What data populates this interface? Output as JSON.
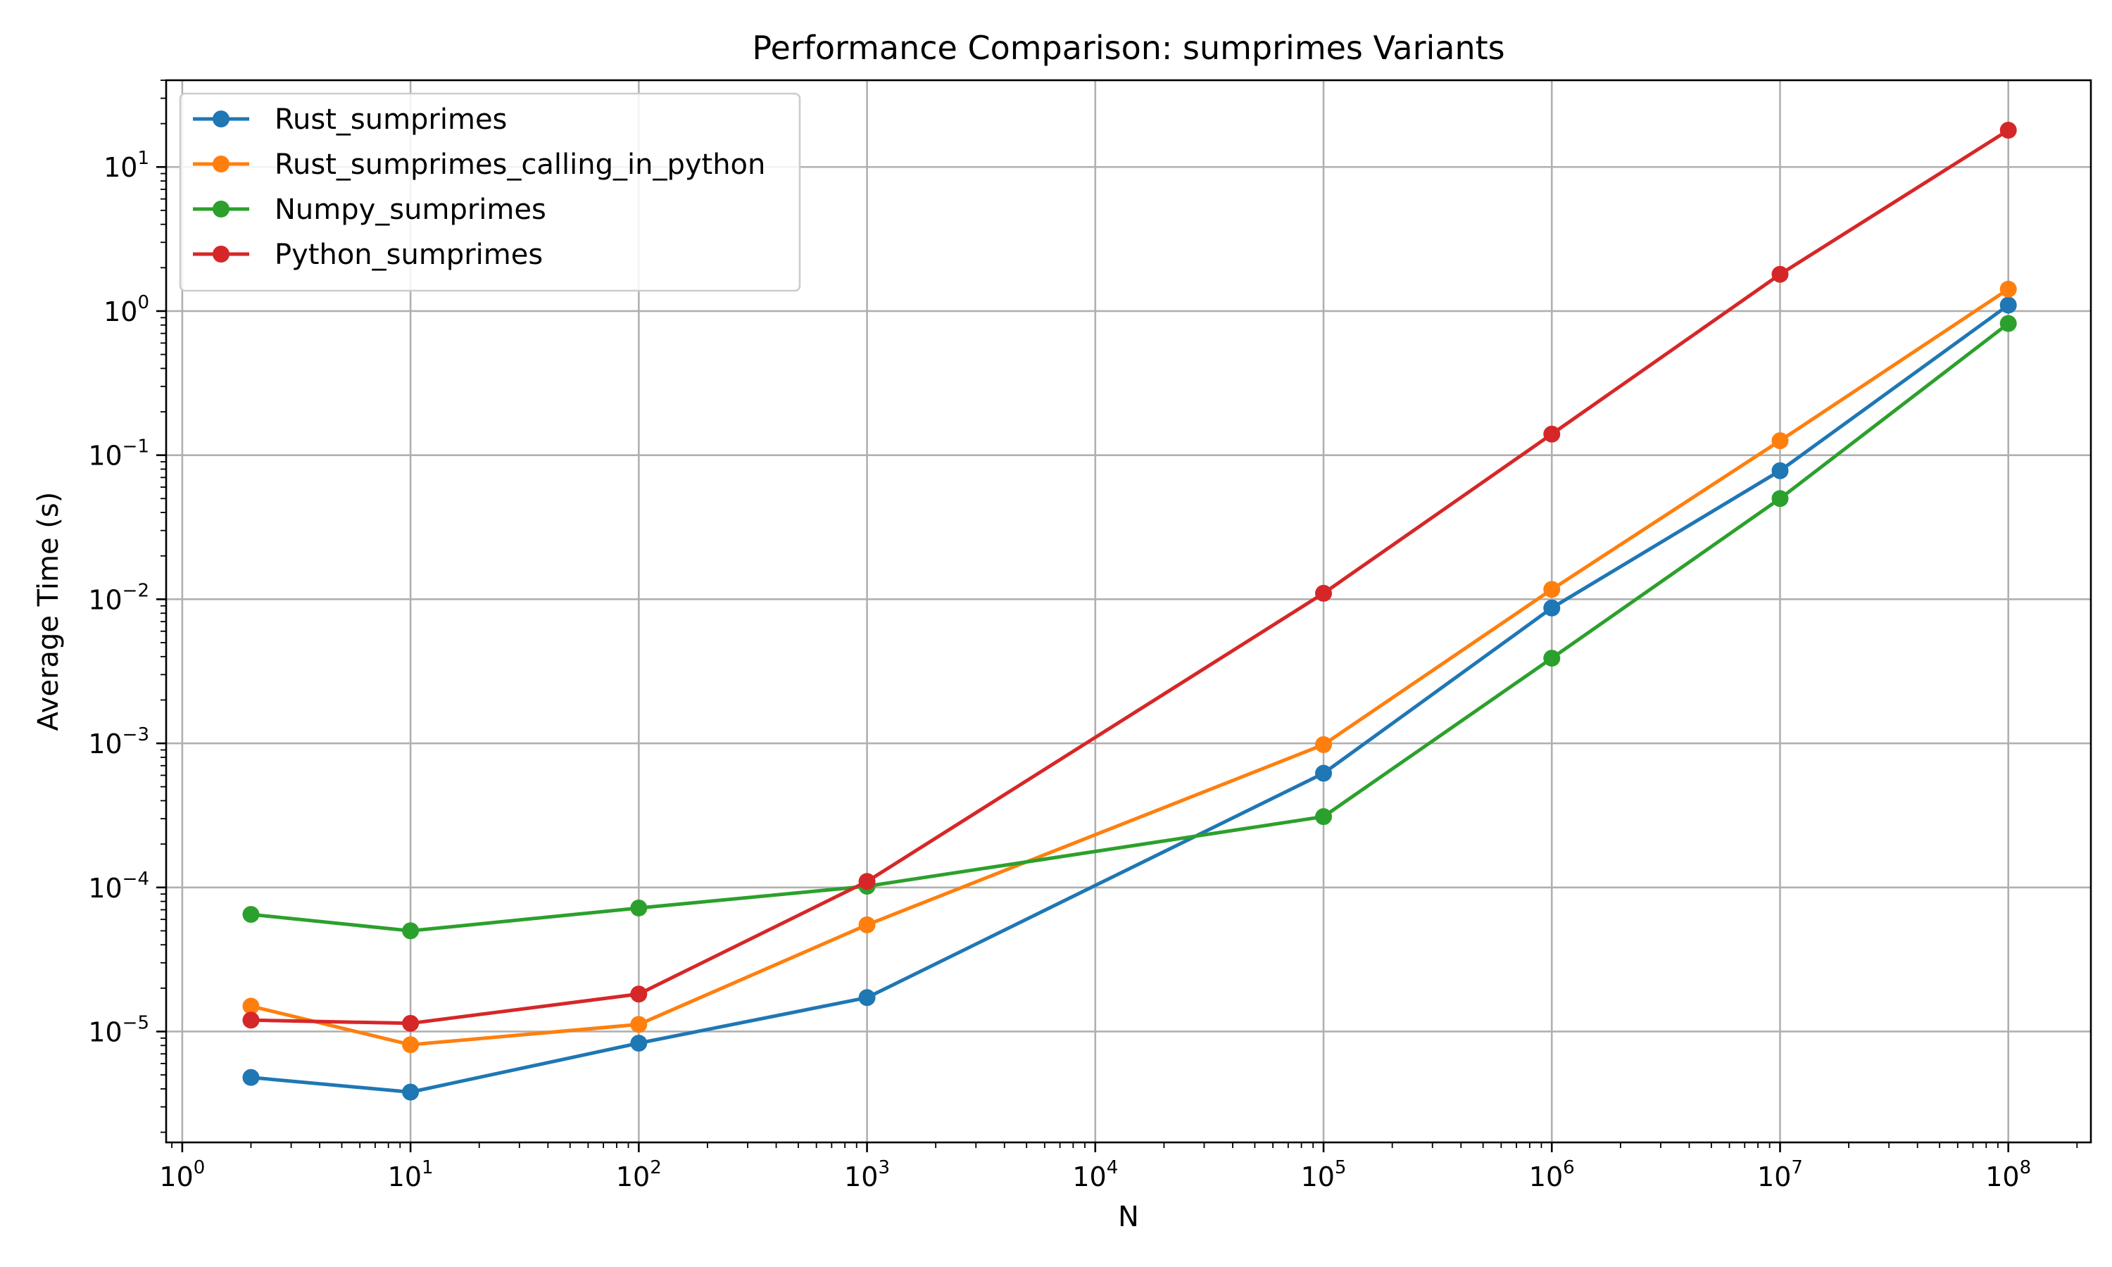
{
  "chart_data": {
    "type": "line",
    "title": "Performance Comparison: sumprimes Variants",
    "xlabel": "N",
    "ylabel": "Average Time (s)",
    "xscale": "log",
    "yscale": "log",
    "xlim": [
      0.85,
      230000000
    ],
    "ylim": [
      1.7e-06,
      40
    ],
    "grid": true,
    "legend_position": "upper-left",
    "x_ticks": [
      {
        "base": "10",
        "exp": "0",
        "value": 1
      },
      {
        "base": "10",
        "exp": "1",
        "value": 10
      },
      {
        "base": "10",
        "exp": "2",
        "value": 100
      },
      {
        "base": "10",
        "exp": "3",
        "value": 1000
      },
      {
        "base": "10",
        "exp": "4",
        "value": 10000
      },
      {
        "base": "10",
        "exp": "5",
        "value": 100000
      },
      {
        "base": "10",
        "exp": "6",
        "value": 1000000
      },
      {
        "base": "10",
        "exp": "7",
        "value": 10000000
      },
      {
        "base": "10",
        "exp": "8",
        "value": 100000000
      }
    ],
    "y_ticks": [
      {
        "base": "10",
        "exp": "−5",
        "value": 1e-05
      },
      {
        "base": "10",
        "exp": "−4",
        "value": 0.0001
      },
      {
        "base": "10",
        "exp": "−3",
        "value": 0.001
      },
      {
        "base": "10",
        "exp": "−2",
        "value": 0.01
      },
      {
        "base": "10",
        "exp": "−1",
        "value": 0.1
      },
      {
        "base": "10",
        "exp": "0",
        "value": 1
      },
      {
        "base": "10",
        "exp": "1",
        "value": 10
      }
    ],
    "series": [
      {
        "name": "Rust_sumprimes",
        "color": "#1f77b4",
        "x": [
          2,
          10,
          100,
          1000,
          100000,
          1000000,
          10000000,
          100000000
        ],
        "values": [
          4.8e-06,
          3.8e-06,
          8.3e-06,
          1.72e-05,
          0.00062,
          0.0087,
          0.078,
          1.1
        ]
      },
      {
        "name": "Rust_sumprimes_calling_in_python",
        "color": "#ff7f0e",
        "x": [
          2,
          10,
          100,
          1000,
          100000,
          1000000,
          10000000,
          100000000
        ],
        "values": [
          1.5e-05,
          8.1e-06,
          1.12e-05,
          5.5e-05,
          0.00098,
          0.0117,
          0.126,
          1.42
        ]
      },
      {
        "name": "Numpy_sumprimes",
        "color": "#2ca02c",
        "x": [
          2,
          10,
          100,
          1000,
          100000,
          1000000,
          10000000,
          100000000
        ],
        "values": [
          6.5e-05,
          5e-05,
          7.2e-05,
          0.000102,
          0.00031,
          0.0039,
          0.05,
          0.82
        ]
      },
      {
        "name": "Python_sumprimes",
        "color": "#d62728",
        "x": [
          2,
          10,
          100,
          1000,
          100000,
          1000000,
          10000000,
          100000000
        ],
        "values": [
          1.2e-05,
          1.14e-05,
          1.82e-05,
          0.00011,
          0.011,
          0.14,
          1.8,
          18
        ]
      }
    ]
  }
}
